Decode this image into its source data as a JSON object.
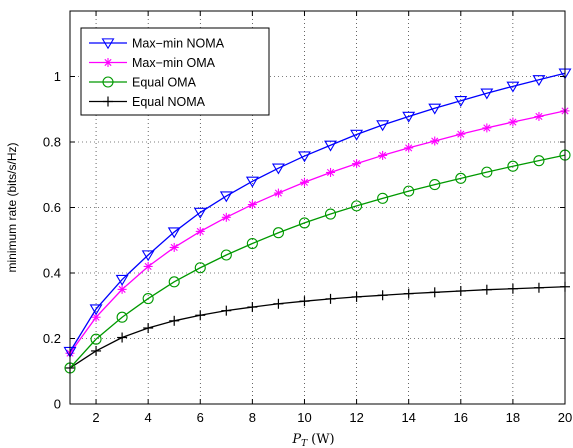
{
  "chart_data": {
    "type": "line",
    "xlabel": {
      "symbol": "P",
      "subscript": "T",
      "unit": "(W)"
    },
    "ylabel": "minimum rate (bits/s/Hz)",
    "xlim": [
      1,
      20
    ],
    "ylim": [
      0,
      1.2
    ],
    "xticks": [
      2,
      4,
      6,
      8,
      10,
      12,
      14,
      16,
      18,
      20
    ],
    "yticks": [
      0,
      0.2,
      0.4,
      0.6,
      0.8,
      1
    ],
    "grid": true,
    "legend_position": "top-left",
    "x": [
      1,
      2,
      3,
      4,
      5,
      6,
      7,
      8,
      9,
      10,
      11,
      12,
      13,
      14,
      15,
      16,
      17,
      18,
      19,
      20
    ],
    "series": [
      {
        "name": "Max−min NOMA",
        "color": "#0000ff",
        "marker": "triangle-down",
        "values": [
          0.16,
          0.29,
          0.38,
          0.455,
          0.525,
          0.585,
          0.635,
          0.68,
          0.72,
          0.757,
          0.79,
          0.823,
          0.852,
          0.878,
          0.903,
          0.926,
          0.949,
          0.97,
          0.99,
          1.01
        ]
      },
      {
        "name": "Max−min OMA",
        "color": "#ff00ff",
        "marker": "asterisk",
        "values": [
          0.155,
          0.265,
          0.35,
          0.42,
          0.478,
          0.527,
          0.57,
          0.609,
          0.644,
          0.677,
          0.707,
          0.734,
          0.759,
          0.782,
          0.803,
          0.824,
          0.843,
          0.861,
          0.878,
          0.895
        ]
      },
      {
        "name": "Equal OMA",
        "color": "#009900",
        "marker": "circle",
        "values": [
          0.11,
          0.198,
          0.265,
          0.322,
          0.373,
          0.416,
          0.455,
          0.49,
          0.523,
          0.553,
          0.58,
          0.605,
          0.628,
          0.65,
          0.67,
          0.689,
          0.708,
          0.726,
          0.743,
          0.76
        ]
      },
      {
        "name": "Equal NOMA",
        "color": "#000000",
        "marker": "plus",
        "values": [
          0.11,
          0.162,
          0.203,
          0.232,
          0.254,
          0.271,
          0.285,
          0.296,
          0.306,
          0.314,
          0.321,
          0.327,
          0.332,
          0.337,
          0.341,
          0.345,
          0.349,
          0.352,
          0.355,
          0.358
        ]
      }
    ]
  }
}
